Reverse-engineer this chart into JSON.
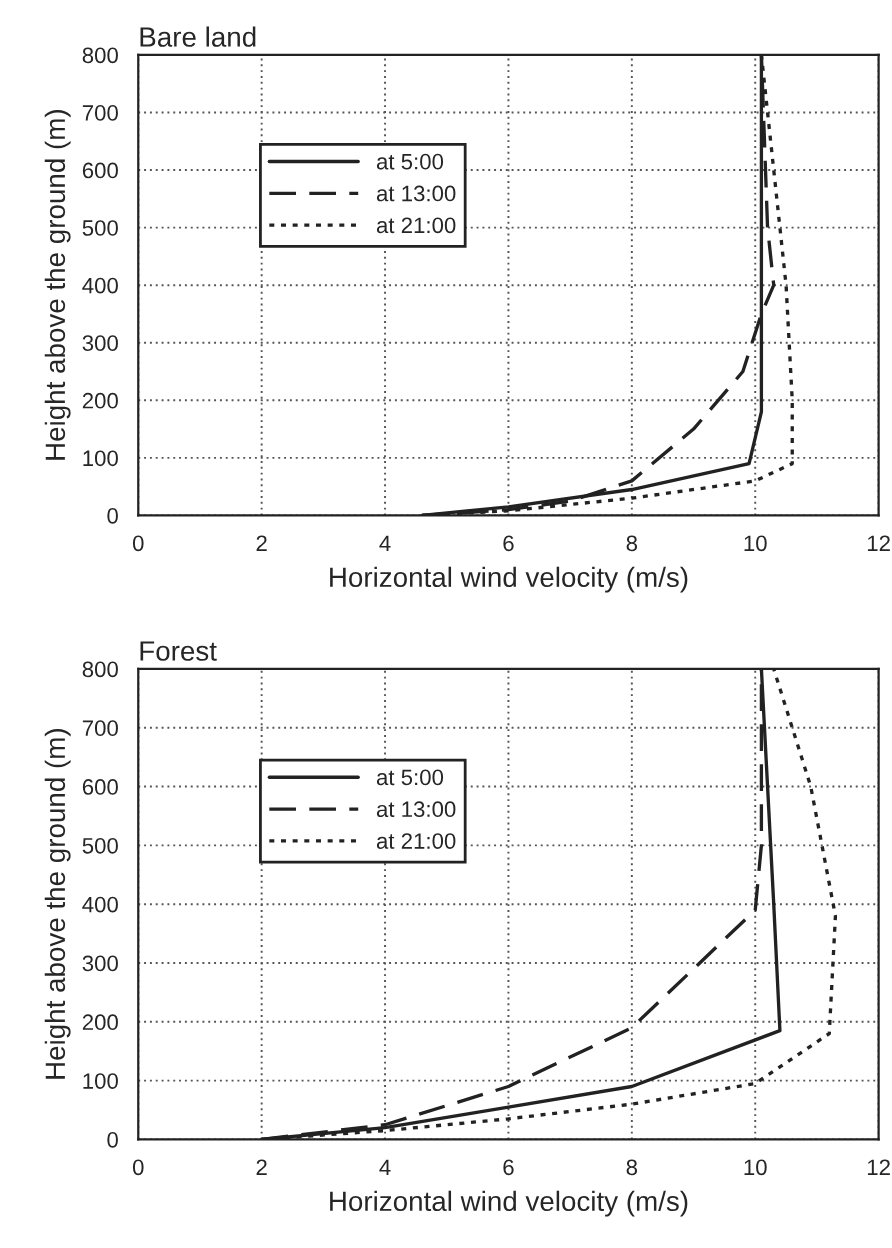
{
  "chart_data": [
    {
      "type": "line",
      "title": "Bare land",
      "xlabel": "Horizontal wind velocity (m/s)",
      "ylabel": "Height above the ground (m)",
      "xlim": [
        0,
        12
      ],
      "xticks": [
        0,
        2,
        4,
        6,
        8,
        10,
        12
      ],
      "ylim": [
        0,
        800
      ],
      "yticks": [
        0,
        100,
        200,
        300,
        400,
        500,
        600,
        700,
        800
      ],
      "grid": true,
      "legend": "top left",
      "series": [
        {
          "name": "at 5:00",
          "color": "#222222",
          "line_style": "solid",
          "x": [
            4.6,
            6,
            8,
            9.9,
            10.1,
            10.1,
            10.1
          ],
          "values": [
            0,
            15,
            45,
            90,
            180,
            400,
            800
          ]
        },
        {
          "name": "at 13:00",
          "color": "#222222",
          "line_style": "dashed",
          "x": [
            4.6,
            6,
            7,
            8,
            9,
            9.8,
            10.1,
            10.3,
            10.2,
            10.1
          ],
          "values": [
            0,
            10,
            25,
            60,
            150,
            250,
            350,
            400,
            500,
            800
          ]
        },
        {
          "name": "at 21:00",
          "color": "#222222",
          "line_style": "dotted",
          "x": [
            4.6,
            6,
            8,
            10,
            10.6,
            10.6,
            10.5,
            10.3,
            10.1
          ],
          "values": [
            0,
            8,
            30,
            60,
            90,
            200,
            400,
            600,
            800
          ]
        }
      ]
    },
    {
      "type": "line",
      "title": "Forest",
      "xlabel": "Horizontal wind velocity (m/s)",
      "ylabel": "Height above the ground (m)",
      "xlim": [
        0,
        12
      ],
      "xticks": [
        0,
        2,
        4,
        6,
        8,
        10,
        12
      ],
      "ylim": [
        0,
        800
      ],
      "yticks": [
        0,
        100,
        200,
        300,
        400,
        500,
        600,
        700,
        800
      ],
      "grid": true,
      "legend": "top left",
      "series": [
        {
          "name": "at 5:00",
          "color": "#222222",
          "line_style": "solid",
          "x": [
            2,
            4,
            6,
            8,
            10.4,
            10.3,
            10.1
          ],
          "values": [
            0,
            20,
            55,
            90,
            185,
            400,
            800
          ]
        },
        {
          "name": "at 13:00",
          "color": "#222222",
          "line_style": "dashed",
          "x": [
            2,
            4,
            6,
            8,
            10,
            10.1,
            10.1
          ],
          "values": [
            0,
            25,
            90,
            190,
            390,
            500,
            800
          ]
        },
        {
          "name": "at 21:00",
          "color": "#222222",
          "line_style": "dotted",
          "x": [
            2,
            4,
            6,
            8,
            10,
            11.2,
            11.3,
            10.9,
            10.3
          ],
          "values": [
            0,
            15,
            35,
            60,
            95,
            180,
            380,
            600,
            800
          ]
        }
      ]
    }
  ]
}
